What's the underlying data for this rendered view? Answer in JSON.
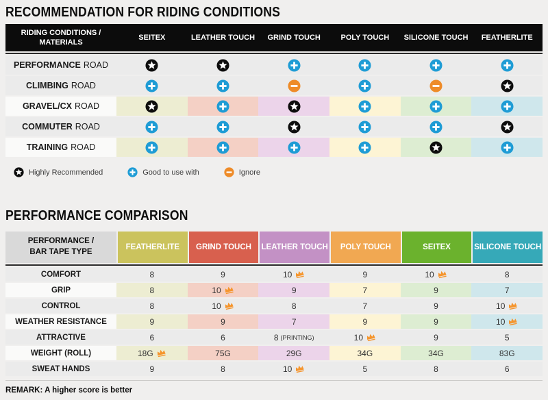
{
  "section1_title": "RECOMMENDATION FOR RIDING CONDITIONS",
  "section2_title": "PERFORMANCE COMPARISON",
  "remark": "REMARK: A higher score is better",
  "legend": [
    {
      "icon": "star",
      "label": "Highly Recommended"
    },
    {
      "icon": "plus",
      "label": "Good to use with"
    },
    {
      "icon": "minus",
      "label": "Ignore"
    }
  ],
  "chart_data": [
    {
      "type": "table",
      "title": "RECOMMENDATION FOR RIDING CONDITIONS",
      "row_header": "RIDING CONDITIONS / MATERIALS",
      "columns": [
        "SEITEX",
        "LEATHER TOUCH",
        "GRIND TOUCH",
        "POLY TOUCH",
        "SILICONE TOUCH",
        "FEATHERLITE"
      ],
      "rows": [
        "PERFORMANCE ROAD",
        "CLIMBING ROAD",
        "GRAVEL/CX ROAD",
        "COMMUTER ROAD",
        "TRAINING ROAD"
      ],
      "values": [
        [
          "star",
          "star",
          "plus",
          "plus",
          "plus",
          "plus"
        ],
        [
          "plus",
          "plus",
          "minus",
          "plus",
          "minus",
          "star"
        ],
        [
          "star",
          "plus",
          "star",
          "plus",
          "plus",
          "plus"
        ],
        [
          "plus",
          "plus",
          "star",
          "plus",
          "plus",
          "star"
        ],
        [
          "plus",
          "plus",
          "plus",
          "plus",
          "star",
          "plus"
        ]
      ],
      "icon_meaning": {
        "star": "Highly Recommended",
        "plus": "Good to use with",
        "minus": "Ignore"
      }
    },
    {
      "type": "table",
      "title": "PERFORMANCE COMPARISON",
      "row_header": "PERFORMANCE / BAR TAPE TYPE",
      "columns": [
        "FEATHERLITE",
        "GRIND TOUCH",
        "LEATHER TOUCH",
        "POLY TOUCH",
        "SEITEX",
        "SILICONE TOUCH"
      ],
      "rows": [
        "COMFORT",
        "GRIP",
        "CONTROL",
        "WEATHER RESISTANCE",
        "ATTRACTIVE",
        "WEIGHT (ROLL)",
        "SWEAT HANDS"
      ],
      "values": [
        [
          "8",
          "9",
          "10",
          "9",
          "10",
          "8"
        ],
        [
          "8",
          "10",
          "9",
          "7",
          "9",
          "7"
        ],
        [
          "8",
          "10",
          "8",
          "7",
          "9",
          "10"
        ],
        [
          "9",
          "9",
          "7",
          "9",
          "9",
          "10"
        ],
        [
          "6",
          "6",
          "8 (PRINTING)",
          "10",
          "9",
          "5"
        ],
        [
          "18G",
          "75G",
          "29G",
          "34G",
          "34G",
          "83G"
        ],
        [
          "9",
          "8",
          "10",
          "5",
          "8",
          "6"
        ]
      ],
      "crown_cells": [
        [
          0,
          2
        ],
        [
          0,
          4
        ],
        [
          1,
          1
        ],
        [
          2,
          1
        ],
        [
          2,
          5
        ],
        [
          3,
          5
        ],
        [
          4,
          3
        ],
        [
          5,
          0
        ],
        [
          6,
          2
        ]
      ],
      "crown_meaning": "best score in row",
      "remark": "REMARK: A higher score is better"
    }
  ],
  "render": {
    "tints": [
      "#ededd2",
      "#f4d0c5",
      "#ecd4ea",
      "#fdf4d4",
      "#ddedd2",
      "#cfe7ec"
    ],
    "tinted_rows_t1": [
      2,
      4
    ],
    "tinted_rows_t2": [
      1,
      3,
      5
    ],
    "header_colors_t2": [
      "#cbc35d",
      "#d8604e",
      "#c391c5",
      "#f1a852",
      "#6bb22d",
      "#36a9b8"
    ],
    "icon_colors": {
      "star": "#0d0d0d",
      "plus": "#1e9cd5",
      "minus": "#ee8b28",
      "crown": "#f5952d"
    }
  }
}
